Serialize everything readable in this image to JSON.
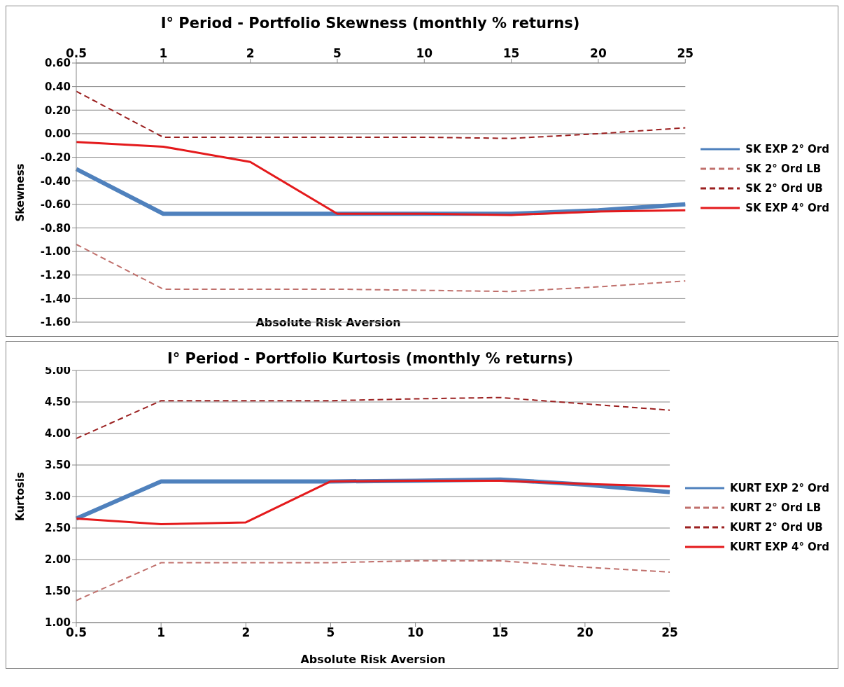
{
  "chart_data": [
    {
      "type": "line",
      "title": "I° Period - Portfolio Skewness (monthly % returns)",
      "xlabel": "Absolute Risk Aversion",
      "ylabel": "Skewness",
      "categories": [
        "0.5",
        "1",
        "2",
        "5",
        "10",
        "15",
        "20",
        "25"
      ],
      "ylim": [
        -1.6,
        0.6
      ],
      "yticks": [
        {
          "value": -1.6,
          "label": "-1.60"
        },
        {
          "value": -1.4,
          "label": "-1.40"
        },
        {
          "value": -1.2,
          "label": "-1.20"
        },
        {
          "value": -1.0,
          "label": "-1.00"
        },
        {
          "value": -0.8,
          "label": "-0.80"
        },
        {
          "value": -0.6,
          "label": "-0.60"
        },
        {
          "value": -0.4,
          "label": "-0.40"
        },
        {
          "value": -0.2,
          "label": "-0.20"
        },
        {
          "value": 0,
          "label": "0.00"
        },
        {
          "value": 0.2,
          "label": "0.20"
        },
        {
          "value": 0.4,
          "label": "0.40"
        },
        {
          "value": 0.6,
          "label": "0.60"
        }
      ],
      "grid": "y",
      "legend": "right",
      "marker": "none",
      "series": [
        {
          "name": "SK EXP 2° Ord",
          "color": "#4f81bd",
          "line_style": "solid",
          "values": [
            -0.3,
            -0.68,
            -0.68,
            -0.68,
            -0.68,
            -0.68,
            -0.65,
            -0.6
          ]
        },
        {
          "name": "SK 2° Ord LB",
          "color": "#c0706c",
          "line_style": "dashed",
          "values": [
            -0.94,
            -1.32,
            -1.32,
            -1.32,
            -1.33,
            -1.34,
            -1.3,
            -1.25
          ]
        },
        {
          "name": "SK 2° Ord UB",
          "color": "#9b2020",
          "line_style": "dashed",
          "values": [
            0.36,
            -0.03,
            -0.03,
            -0.03,
            -0.03,
            -0.04,
            0.0,
            0.05
          ]
        },
        {
          "name": "SK EXP 4° Ord",
          "color": "#e41a1c",
          "line_style": "solid",
          "values": [
            -0.07,
            -0.11,
            -0.24,
            -0.68,
            -0.68,
            -0.69,
            -0.66,
            -0.65
          ]
        }
      ]
    },
    {
      "type": "line",
      "title": "I° Period - Portfolio Kurtosis (monthly % returns)",
      "xlabel": "Absolute Risk Aversion",
      "ylabel": "Kurtosis",
      "categories": [
        "0.5",
        "1",
        "2",
        "5",
        "10",
        "15",
        "20",
        "25"
      ],
      "ylim": [
        1,
        5
      ],
      "yticks": [
        {
          "value": 1,
          "label": "1.00"
        },
        {
          "value": 1.5,
          "label": "1.50"
        },
        {
          "value": 2,
          "label": "2.00"
        },
        {
          "value": 2.5,
          "label": "2.50"
        },
        {
          "value": 3,
          "label": "3.00"
        },
        {
          "value": 3.5,
          "label": "3.50"
        },
        {
          "value": 4,
          "label": "4.00"
        },
        {
          "value": 4.5,
          "label": "4.50"
        },
        {
          "value": 5,
          "label": "5.00"
        }
      ],
      "grid": "y",
      "legend": "right",
      "marker": "none",
      "series": [
        {
          "name": "KURT EXP 2° Ord",
          "color": "#4f81bd",
          "line_style": "solid",
          "values": [
            2.65,
            3.24,
            3.24,
            3.24,
            3.25,
            3.27,
            3.19,
            3.07
          ]
        },
        {
          "name": "KURT 2° Ord LB",
          "color": "#c0706c",
          "line_style": "dashed",
          "values": [
            1.35,
            1.95,
            1.95,
            1.95,
            1.98,
            1.98,
            1.88,
            1.8
          ]
        },
        {
          "name": "KURT 2° Ord UB",
          "color": "#9b2020",
          "line_style": "dashed",
          "values": [
            3.92,
            4.52,
            4.52,
            4.52,
            4.55,
            4.57,
            4.47,
            4.37
          ]
        },
        {
          "name": "KURT EXP 4° Ord",
          "color": "#e41a1c",
          "line_style": "solid",
          "values": [
            2.65,
            2.56,
            2.59,
            3.24,
            3.25,
            3.25,
            3.2,
            3.16
          ]
        }
      ]
    }
  ]
}
